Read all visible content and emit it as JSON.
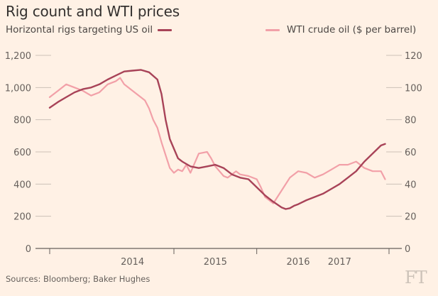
{
  "chart_data": {
    "type": "line",
    "title": "Rig count and WTI prices",
    "source": "Sources: Bloomberg; Baker Hughes",
    "logo": "FT",
    "left_axis": {
      "ticks": [
        0,
        200,
        400,
        600,
        800,
        1000,
        1200
      ],
      "tick_labels": [
        "0",
        "200",
        "400",
        "600",
        "800",
        "1,000",
        "1,200"
      ],
      "ylim": [
        0,
        1200
      ]
    },
    "right_axis": {
      "ticks": [
        0,
        20,
        40,
        60,
        80,
        100,
        120
      ],
      "tick_labels": [
        "0",
        "20",
        "40",
        "60",
        "80",
        "100",
        "120"
      ],
      "ylim": [
        0,
        120
      ]
    },
    "x_axis": {
      "tick_labels": [
        "2014",
        "2015",
        "2016",
        "2017"
      ],
      "label_positions": [
        2014.5,
        2015.5,
        2016.5,
        2017.0
      ],
      "boundaries": [
        2015.0,
        2016.0
      ],
      "xlim": [
        2013.5,
        2017.7
      ]
    },
    "series": [
      {
        "name": "Horizontal rigs targeting US oil",
        "axis": "left",
        "color": "#a84358",
        "x": [
          2013.5,
          2013.6,
          2013.7,
          2013.8,
          2013.9,
          2014.0,
          2014.1,
          2014.2,
          2014.3,
          2014.4,
          2014.5,
          2014.6,
          2014.7,
          2014.8,
          2014.85,
          2014.9,
          2014.95,
          2015.0,
          2015.05,
          2015.1,
          2015.15,
          2015.2,
          2015.3,
          2015.4,
          2015.5,
          2015.6,
          2015.7,
          2015.8,
          2015.9,
          2016.0,
          2016.1,
          2016.2,
          2016.3,
          2016.35,
          2016.4,
          2016.45,
          2016.5,
          2016.6,
          2016.7,
          2016.8,
          2016.9,
          2017.0,
          2017.1,
          2017.2,
          2017.3,
          2017.4,
          2017.5,
          2017.55
        ],
        "values": [
          875,
          910,
          940,
          970,
          990,
          1000,
          1020,
          1050,
          1075,
          1100,
          1105,
          1110,
          1095,
          1050,
          960,
          800,
          680,
          620,
          560,
          540,
          525,
          510,
          500,
          510,
          520,
          500,
          460,
          440,
          430,
          380,
          330,
          290,
          255,
          245,
          250,
          265,
          275,
          300,
          320,
          340,
          370,
          400,
          440,
          480,
          540,
          590,
          640,
          650
        ]
      },
      {
        "name": "WTI crude oil ($ per barrel)",
        "axis": "right",
        "color": "#f2a0a8",
        "x": [
          2013.5,
          2013.6,
          2013.7,
          2013.8,
          2013.9,
          2014.0,
          2014.1,
          2014.2,
          2014.3,
          2014.35,
          2014.4,
          2014.45,
          2014.5,
          2014.55,
          2014.6,
          2014.65,
          2014.7,
          2014.75,
          2014.8,
          2014.85,
          2014.9,
          2014.95,
          2015.0,
          2015.05,
          2015.1,
          2015.15,
          2015.2,
          2015.3,
          2015.4,
          2015.45,
          2015.5,
          2015.55,
          2015.6,
          2015.65,
          2015.7,
          2015.75,
          2015.8,
          2015.9,
          2016.0,
          2016.05,
          2016.1,
          2016.15,
          2016.2,
          2016.3,
          2016.4,
          2016.5,
          2016.6,
          2016.7,
          2016.8,
          2016.9,
          2017.0,
          2017.1,
          2017.2,
          2017.3,
          2017.4,
          2017.5,
          2017.55
        ],
        "values": [
          94,
          98,
          102,
          100,
          98,
          95,
          97,
          102,
          104,
          106,
          102,
          100,
          98,
          96,
          94,
          92,
          87,
          80,
          75,
          66,
          58,
          50,
          47,
          49,
          48,
          52,
          47,
          59,
          60,
          56,
          51,
          48,
          45,
          44,
          46,
          48,
          46,
          45,
          43,
          38,
          32,
          30,
          28,
          36,
          44,
          48,
          47,
          44,
          46,
          49,
          52,
          52,
          54,
          50,
          48,
          48,
          43
        ]
      }
    ]
  }
}
